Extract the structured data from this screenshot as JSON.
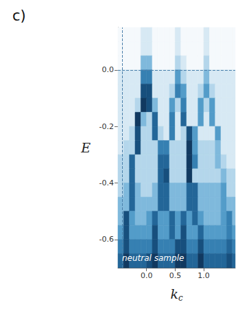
{
  "chart_data": {
    "type": "heatmap",
    "panel_label": "c)",
    "ylabel": "E",
    "xlabel": "k",
    "xlabel_subscript": "c",
    "annotation": "neutral sample",
    "xlim": [
      -0.5,
      1.55
    ],
    "ylim": [
      -0.7,
      0.15
    ],
    "xticks": [
      {
        "value": 0,
        "label": "0.0"
      },
      0.5,
      {
        "value": 1,
        "label": "1.0"
      }
    ],
    "yticks": [
      {
        "value": 0,
        "label": "0.0"
      },
      -0.2,
      -0.4,
      -0.6
    ],
    "grid": false,
    "hlines": [
      0
    ],
    "vlines": [
      -0.43
    ],
    "zlim": [
      0,
      9
    ],
    "x_bins": [
      -0.5,
      -0.4,
      -0.3,
      -0.2,
      -0.1,
      0,
      0.1,
      0.2,
      0.3,
      0.4,
      0.5,
      0.6,
      0.7,
      0.8,
      0.9,
      1.0,
      1.1,
      1.2,
      1.3,
      1.4,
      1.5,
      1.6
    ],
    "y_bins": [
      0.15,
      0.1,
      0.05,
      0,
      -0.05,
      -0.1,
      -0.15,
      -0.2,
      -0.25,
      -0.3,
      -0.35,
      -0.4,
      -0.45,
      -0.5,
      -0.55,
      -0.6,
      -0.65,
      -0.7
    ],
    "cells": [
      [
        0,
        0,
        0,
        0,
        1,
        1,
        0,
        0,
        0,
        0,
        1,
        0,
        0,
        0,
        0,
        1,
        0,
        0,
        0,
        0,
        0
      ],
      [
        0,
        0,
        0,
        0,
        1,
        1,
        0,
        0,
        0,
        0,
        1,
        0,
        0,
        0,
        0,
        1,
        0,
        0,
        0,
        0,
        0
      ],
      [
        0,
        0,
        0,
        0,
        3,
        3,
        0,
        0,
        0,
        0,
        2,
        1,
        0,
        0,
        0,
        2,
        0,
        0,
        0,
        0,
        0
      ],
      [
        1,
        1,
        1,
        1,
        5,
        5,
        1,
        1,
        1,
        1,
        4,
        2,
        1,
        1,
        1,
        3,
        1,
        1,
        1,
        1,
        1
      ],
      [
        1,
        1,
        1,
        1,
        7,
        7,
        1,
        1,
        1,
        2,
        5,
        4,
        1,
        1,
        2,
        4,
        2,
        1,
        1,
        1,
        1
      ],
      [
        1,
        1,
        1,
        2,
        8,
        7,
        3,
        1,
        1,
        4,
        2,
        5,
        1,
        1,
        4,
        2,
        4,
        1,
        1,
        1,
        1
      ],
      [
        1,
        1,
        1,
        8,
        3,
        2,
        6,
        1,
        1,
        5,
        1,
        6,
        1,
        1,
        4,
        1,
        4,
        1,
        1,
        1,
        1
      ],
      [
        1,
        1,
        2,
        7,
        2,
        2,
        6,
        2,
        1,
        5,
        1,
        2,
        7,
        4,
        1,
        1,
        1,
        4,
        1,
        1,
        1
      ],
      [
        1,
        2,
        2,
        7,
        2,
        2,
        2,
        5,
        5,
        2,
        2,
        2,
        8,
        4,
        2,
        2,
        2,
        3,
        1,
        1,
        1
      ],
      [
        2,
        2,
        6,
        2,
        2,
        2,
        2,
        6,
        6,
        2,
        2,
        2,
        8,
        5,
        2,
        2,
        2,
        3,
        2,
        1,
        1
      ],
      [
        2,
        2,
        6,
        2,
        2,
        2,
        2,
        6,
        7,
        2,
        2,
        2,
        8,
        2,
        2,
        2,
        2,
        2,
        3,
        2,
        2
      ],
      [
        2,
        3,
        6,
        3,
        2,
        2,
        3,
        6,
        6,
        3,
        3,
        3,
        6,
        6,
        3,
        3,
        3,
        3,
        4,
        2,
        2
      ],
      [
        3,
        3,
        6,
        3,
        3,
        3,
        3,
        6,
        6,
        3,
        3,
        3,
        6,
        6,
        3,
        3,
        3,
        3,
        4,
        3,
        3
      ],
      [
        3,
        7,
        4,
        3,
        3,
        4,
        6,
        4,
        4,
        6,
        4,
        6,
        4,
        6,
        4,
        3,
        3,
        3,
        4,
        5,
        3
      ],
      [
        4,
        7,
        4,
        4,
        4,
        4,
        7,
        4,
        4,
        6,
        4,
        7,
        4,
        4,
        6,
        4,
        4,
        4,
        4,
        5,
        4
      ],
      [
        5,
        7,
        5,
        5,
        5,
        5,
        7,
        5,
        5,
        5,
        7,
        7,
        5,
        5,
        7,
        5,
        5,
        5,
        5,
        6,
        5
      ],
      [
        6,
        8,
        6,
        6,
        6,
        7,
        8,
        6,
        6,
        6,
        8,
        8,
        6,
        6,
        8,
        6,
        6,
        6,
        6,
        7,
        6
      ]
    ]
  }
}
